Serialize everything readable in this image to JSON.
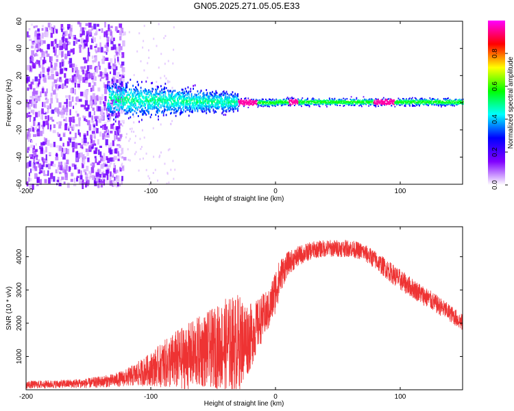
{
  "title": "GN05.2025.271.05.05.E33",
  "chart_data": [
    {
      "type": "heatmap",
      "name": "spectrogram",
      "xlabel": "Height of straight line (km)",
      "ylabel": "Frequency (Hz)",
      "xlim": [
        -200,
        150
      ],
      "ylim": [
        -60,
        60
      ],
      "xticks": [
        -200,
        -100,
        0,
        100
      ],
      "yticks": [
        -60,
        -40,
        -20,
        0,
        20,
        40,
        60
      ],
      "colorbar": {
        "label": "Normalized spectral amplitude",
        "range": [
          0,
          1
        ],
        "ticks": [
          "0.0",
          "0.2",
          "0.4",
          "0.6",
          "0.8"
        ],
        "colors": [
          "#ffffff",
          "#8000ff",
          "#0000ff",
          "#00ffff",
          "#00ff00",
          "#ffff00",
          "#ff0000",
          "#ff00ff"
        ]
      },
      "description_points": [
        {
          "x": -200,
          "spread_hz": 120,
          "amplitude": 0.12
        },
        {
          "x": -125,
          "spread_hz": 120,
          "amplitude": 0.12
        },
        {
          "x": -120,
          "spread_hz": 30,
          "amplitude": 0.3
        },
        {
          "x": -60,
          "spread_hz": 20,
          "amplitude": 0.35
        },
        {
          "x": -30,
          "spread_hz": 8,
          "amplitude": 0.5
        },
        {
          "x": 0,
          "spread_hz": 6,
          "amplitude": 0.6
        },
        {
          "x": 90,
          "spread_hz": 6,
          "amplitude": 0.9
        },
        {
          "x": 150,
          "spread_hz": 6,
          "amplitude": 0.5
        }
      ]
    },
    {
      "type": "line",
      "name": "snr",
      "xlabel": "Height of straight line (km)",
      "ylabel": "SNR (10 * v/v)",
      "xlim": [
        -200,
        150
      ],
      "ylim": [
        0,
        4900
      ],
      "xticks": [
        -200,
        -100,
        0,
        100
      ],
      "yticks": [
        1000,
        2000,
        3000,
        4000
      ],
      "color": "#ee3333",
      "envelope": {
        "x": [
          -200,
          -175,
          -150,
          -130,
          -120,
          -110,
          -100,
          -90,
          -80,
          -70,
          -60,
          -50,
          -40,
          -30,
          -20,
          -15,
          -10,
          -5,
          0,
          5,
          10,
          20,
          30,
          40,
          50,
          60,
          70,
          80,
          90,
          100,
          110,
          120,
          130,
          140,
          150
        ],
        "center": [
          150,
          170,
          200,
          280,
          360,
          480,
          620,
          760,
          880,
          1000,
          1150,
          1250,
          1350,
          1400,
          1600,
          1900,
          2200,
          2400,
          3000,
          3500,
          3800,
          4050,
          4200,
          4250,
          4250,
          4250,
          4150,
          3900,
          3600,
          3300,
          3050,
          2800,
          2550,
          2300,
          2000
        ],
        "noise": [
          120,
          120,
          150,
          200,
          260,
          380,
          500,
          700,
          900,
          1000,
          1100,
          1200,
          1400,
          1500,
          1000,
          800,
          700,
          600,
          700,
          500,
          350,
          300,
          260,
          260,
          260,
          260,
          260,
          280,
          300,
          320,
          300,
          300,
          280,
          260,
          260
        ]
      }
    }
  ]
}
